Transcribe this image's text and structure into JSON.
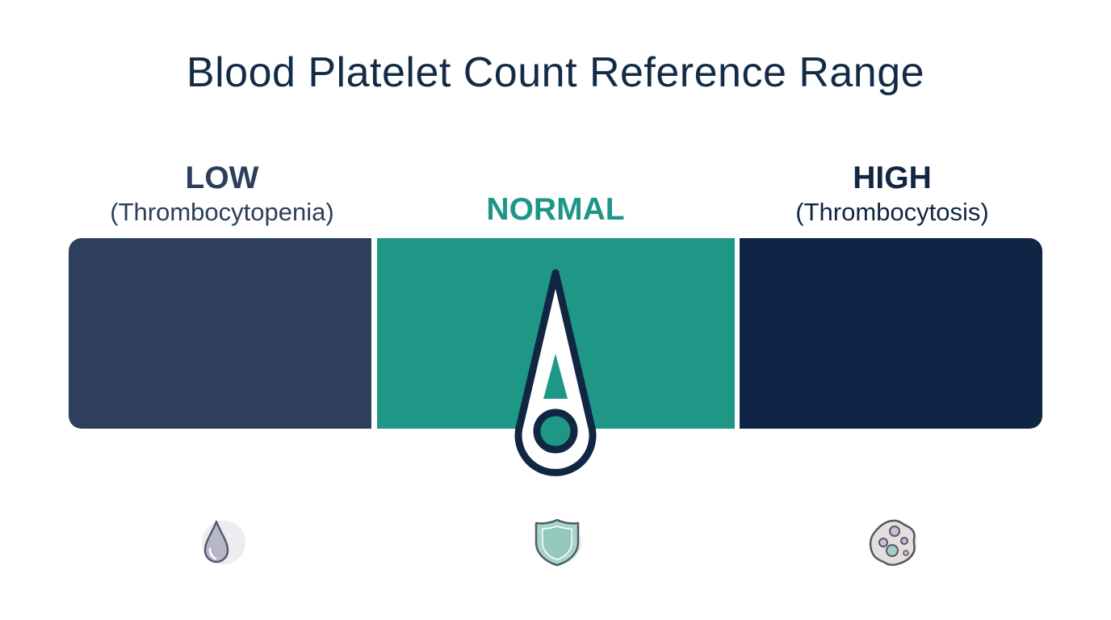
{
  "title": "Blood Platelet Count Reference Range",
  "ranges": {
    "low": {
      "label": "LOW",
      "sublabel": "(Thrombocytopenia)",
      "color": "#2e3f5e",
      "icon": "water-drop-icon"
    },
    "normal": {
      "label": "NORMAL",
      "color": "#1f9786",
      "icon": "shield-icon"
    },
    "high": {
      "label": "HIGH",
      "sublabel": "(Thrombocytosis)",
      "color": "#0f2545",
      "icon": "cell-icon"
    }
  },
  "indicator": {
    "points_to": "normal",
    "color": "#112643"
  }
}
